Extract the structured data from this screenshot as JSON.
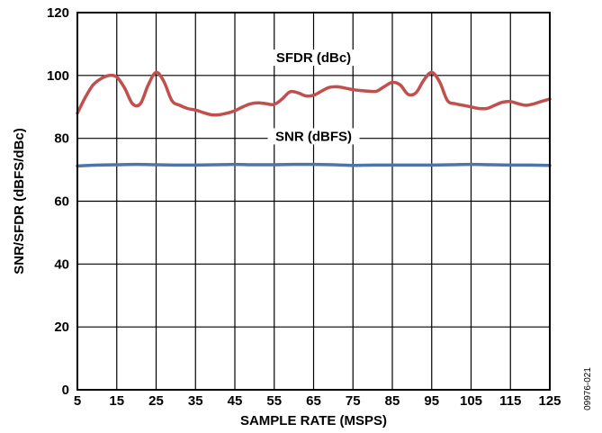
{
  "figure_id": "09976-021",
  "chart_data": {
    "type": "line",
    "xlabel": "SAMPLE RATE (MSPS)",
    "ylabel": "SNR/SFDR (dBFS/dBc)",
    "xlim": [
      5,
      125
    ],
    "ylim": [
      0,
      120
    ],
    "xticks": [
      5,
      15,
      25,
      35,
      45,
      55,
      65,
      75,
      85,
      95,
      105,
      115,
      125
    ],
    "yticks": [
      0,
      20,
      40,
      60,
      80,
      100,
      120
    ],
    "grid": true,
    "series": [
      {
        "name": "SFDR (dBc)",
        "color": "#c0504d",
        "x": [
          5,
          7,
          9,
          11,
          13,
          15,
          17,
          19,
          21,
          23,
          25,
          27,
          29,
          31,
          33,
          35,
          37,
          39,
          41,
          43,
          45,
          47,
          49,
          51,
          53,
          55,
          57,
          59,
          61,
          63,
          65,
          67,
          69,
          71,
          73,
          75,
          77,
          79,
          81,
          83,
          85,
          87,
          89,
          91,
          93,
          95,
          97,
          99,
          101,
          103,
          105,
          107,
          109,
          111,
          113,
          115,
          117,
          119,
          121,
          123,
          125
        ],
        "values": [
          88,
          93,
          97,
          99,
          100,
          99.5,
          96,
          91,
          91,
          97,
          101,
          98,
          92,
          90.5,
          89.5,
          89,
          88.2,
          87.5,
          87.5,
          88,
          88.8,
          90,
          91,
          91.3,
          91,
          90.8,
          92.5,
          94.8,
          94.5,
          93.5,
          93.7,
          95,
          96.2,
          96.4,
          96,
          95.5,
          95.2,
          95,
          95,
          96.5,
          97.8,
          97,
          94,
          94.5,
          98.5,
          101,
          98,
          92,
          91,
          90.5,
          90,
          89.5,
          89.5,
          90.5,
          91.5,
          91.7,
          91,
          90.5,
          91,
          91.8,
          92.5
        ]
      },
      {
        "name": "SNR (dBFS)",
        "color": "#4f74a8",
        "x": [
          5,
          10,
          15,
          20,
          25,
          30,
          35,
          40,
          45,
          50,
          55,
          60,
          65,
          70,
          75,
          80,
          85,
          90,
          95,
          100,
          105,
          110,
          115,
          120,
          125
        ],
        "values": [
          71.2,
          71.5,
          71.6,
          71.7,
          71.6,
          71.5,
          71.5,
          71.6,
          71.7,
          71.6,
          71.6,
          71.7,
          71.7,
          71.6,
          71.4,
          71.5,
          71.5,
          71.5,
          71.5,
          71.6,
          71.7,
          71.6,
          71.5,
          71.5,
          71.4
        ]
      }
    ],
    "annotations": [
      {
        "text": "SFDR (dBc)",
        "series": 0,
        "x": 65,
        "y": 104.5
      },
      {
        "text": "SNR (dBFS)",
        "series": 1,
        "x": 65,
        "y": 79.5
      }
    ]
  }
}
